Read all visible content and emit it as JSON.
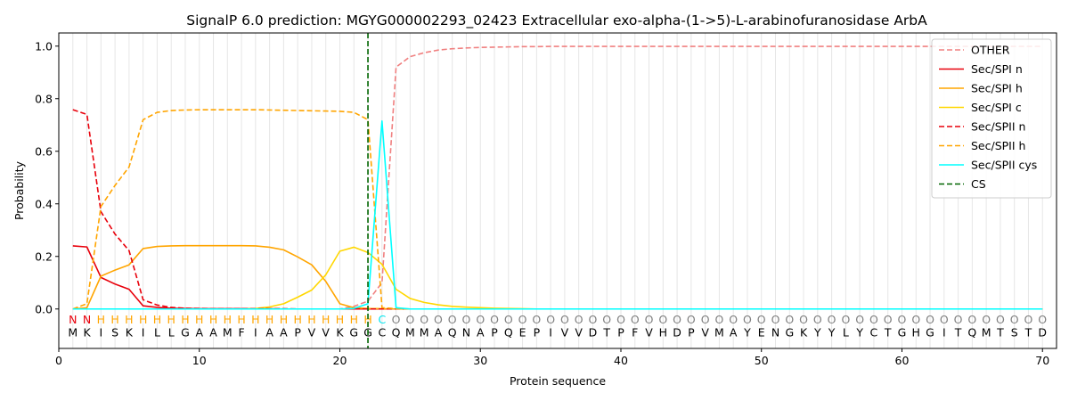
{
  "chart_data": {
    "type": "line",
    "title": "SignalP 6.0 prediction: MGYG000002293_02423 Extracellular exo-alpha-(1->5)-L-arabinofuranosidase ArbA",
    "xlabel": "Protein sequence",
    "ylabel": "Probability",
    "xlim": [
      0,
      71
    ],
    "ylim": [
      -0.15,
      1.05
    ],
    "x_ticks": [
      0,
      10,
      20,
      30,
      40,
      50,
      60,
      70
    ],
    "y_ticks": [
      0.0,
      0.2,
      0.4,
      0.6,
      0.8,
      1.0
    ],
    "grid": "vertical lines at each residue",
    "legend_position": "top-right",
    "sequence": [
      "M",
      "K",
      "I",
      "S",
      "K",
      "I",
      "L",
      "L",
      "G",
      "A",
      "A",
      "M",
      "F",
      "I",
      "A",
      "A",
      "P",
      "V",
      "V",
      "K",
      "G",
      "G",
      "C",
      "Q",
      "M",
      "M",
      "A",
      "Q",
      "N",
      "A",
      "P",
      "Q",
      "E",
      "P",
      "I",
      "V",
      "V",
      "D",
      "T",
      "P",
      "F",
      "V",
      "H",
      "D",
      "P",
      "V",
      "M",
      "A",
      "Y",
      "E",
      "N",
      "G",
      "K",
      "Y",
      "Y",
      "L",
      "Y",
      "C",
      "T",
      "G",
      "H",
      "G",
      "I",
      "T",
      "Q",
      "M",
      "T",
      "S",
      "T",
      "D"
    ],
    "annotation": [
      "N",
      "N",
      "H",
      "H",
      "H",
      "H",
      "H",
      "H",
      "H",
      "H",
      "H",
      "H",
      "H",
      "H",
      "H",
      "H",
      "H",
      "H",
      "H",
      "H",
      "H",
      "H",
      "C",
      "O",
      "O",
      "O",
      "O",
      "O",
      "O",
      "O",
      "O",
      "O",
      "O",
      "O",
      "O",
      "O",
      "O",
      "O",
      "O",
      "O",
      "O",
      "O",
      "O",
      "O",
      "O",
      "O",
      "O",
      "O",
      "O",
      "O",
      "O",
      "O",
      "O",
      "O",
      "O",
      "O",
      "O",
      "O",
      "O",
      "O",
      "O",
      "O",
      "O",
      "O",
      "O",
      "O",
      "O",
      "O",
      "O",
      "O"
    ],
    "annotation_colors": {
      "N": "#e8000b",
      "H": "#ffa500",
      "C": "#00e5ee",
      "O": "#808080"
    },
    "cs_position": 22,
    "series": [
      {
        "name": "OTHER",
        "color": "#f08080",
        "dash": "dashed",
        "values": [
          0.0,
          0.0,
          0.0,
          0.0,
          0.0,
          0.0,
          0.0,
          0.0,
          0.0,
          0.0,
          0.0,
          0.0,
          0.0,
          0.0,
          0.0,
          0.0,
          0.0,
          0.0,
          0.0,
          0.0,
          0.01,
          0.03,
          0.1,
          0.92,
          0.96,
          0.975,
          0.985,
          0.99,
          0.993,
          0.995,
          0.996,
          0.997,
          0.998,
          0.998,
          0.999,
          0.999,
          0.999,
          0.999,
          0.999,
          0.999,
          0.999,
          0.999,
          0.999,
          0.999,
          0.999,
          0.999,
          0.999,
          0.999,
          0.999,
          0.999,
          0.999,
          0.999,
          0.999,
          0.999,
          0.999,
          0.999,
          0.999,
          0.999,
          0.999,
          0.999,
          0.999,
          0.999,
          0.999,
          0.999,
          0.999,
          0.999,
          0.999,
          0.999,
          0.999,
          0.999
        ]
      },
      {
        "name": "Sec/SPI n",
        "color": "#e8000b",
        "dash": "solid",
        "values": [
          0.24,
          0.236,
          0.12,
          0.095,
          0.075,
          0.012,
          0.006,
          0.003,
          0.002,
          0.001,
          0.001,
          0.001,
          0.001,
          0.001,
          0.001,
          0.0,
          0.0,
          0.0,
          0.0,
          0.0,
          0.0,
          0.0,
          0.0,
          0.0,
          0.0,
          0.0,
          0.0,
          0.0,
          0.0,
          0.0,
          0.0,
          0.0,
          0.0,
          0.0,
          0.0,
          0.0,
          0.0,
          0.0,
          0.0,
          0.0,
          0.0,
          0.0,
          0.0,
          0.0,
          0.0,
          0.0,
          0.0,
          0.0,
          0.0,
          0.0,
          0.0,
          0.0,
          0.0,
          0.0,
          0.0,
          0.0,
          0.0,
          0.0,
          0.0,
          0.0,
          0.0,
          0.0,
          0.0,
          0.0,
          0.0,
          0.0,
          0.0,
          0.0,
          0.0,
          0.0
        ]
      },
      {
        "name": "Sec/SPI h",
        "color": "#ffa500",
        "dash": "solid",
        "values": [
          0.0,
          0.005,
          0.125,
          0.148,
          0.168,
          0.23,
          0.238,
          0.24,
          0.241,
          0.241,
          0.241,
          0.241,
          0.241,
          0.24,
          0.235,
          0.225,
          0.198,
          0.168,
          0.105,
          0.02,
          0.005,
          0.002,
          0.001,
          0.0,
          0.0,
          0.0,
          0.0,
          0.0,
          0.0,
          0.0,
          0.0,
          0.0,
          0.0,
          0.0,
          0.0,
          0.0,
          0.0,
          0.0,
          0.0,
          0.0,
          0.0,
          0.0,
          0.0,
          0.0,
          0.0,
          0.0,
          0.0,
          0.0,
          0.0,
          0.0,
          0.0,
          0.0,
          0.0,
          0.0,
          0.0,
          0.0,
          0.0,
          0.0,
          0.0,
          0.0,
          0.0,
          0.0,
          0.0,
          0.0,
          0.0,
          0.0,
          0.0,
          0.0,
          0.0,
          0.0
        ]
      },
      {
        "name": "Sec/SPI c",
        "color": "#ffd700",
        "dash": "solid",
        "values": [
          0.0,
          0.0,
          0.0,
          0.0,
          0.0,
          0.0,
          0.0,
          0.0,
          0.0,
          0.0,
          0.0,
          0.0,
          0.0,
          0.002,
          0.008,
          0.02,
          0.045,
          0.072,
          0.13,
          0.22,
          0.235,
          0.215,
          0.17,
          0.075,
          0.04,
          0.025,
          0.016,
          0.01,
          0.007,
          0.005,
          0.003,
          0.002,
          0.001,
          0.0,
          0.0,
          0.0,
          0.0,
          0.0,
          0.0,
          0.0,
          0.0,
          0.0,
          0.0,
          0.0,
          0.0,
          0.0,
          0.0,
          0.0,
          0.0,
          0.0,
          0.0,
          0.0,
          0.0,
          0.0,
          0.0,
          0.0,
          0.0,
          0.0,
          0.0,
          0.0,
          0.0,
          0.0,
          0.0,
          0.0,
          0.0,
          0.0,
          0.0,
          0.0,
          0.0,
          0.0
        ]
      },
      {
        "name": "Sec/SPII n",
        "color": "#e8000b",
        "dash": "dashed",
        "values": [
          0.758,
          0.74,
          0.37,
          0.285,
          0.222,
          0.035,
          0.015,
          0.006,
          0.003,
          0.002,
          0.001,
          0.001,
          0.001,
          0.001,
          0.001,
          0.001,
          0.0,
          0.0,
          0.0,
          0.0,
          0.0,
          0.0,
          0.0,
          0.0,
          0.0,
          0.0,
          0.0,
          0.0,
          0.0,
          0.0,
          0.0,
          0.0,
          0.0,
          0.0,
          0.0,
          0.0,
          0.0,
          0.0,
          0.0,
          0.0,
          0.0,
          0.0,
          0.0,
          0.0,
          0.0,
          0.0,
          0.0,
          0.0,
          0.0,
          0.0,
          0.0,
          0.0,
          0.0,
          0.0,
          0.0,
          0.0,
          0.0,
          0.0,
          0.0,
          0.0,
          0.0,
          0.0,
          0.0,
          0.0,
          0.0,
          0.0,
          0.0,
          0.0,
          0.0,
          0.0
        ]
      },
      {
        "name": "Sec/SPII h",
        "color": "#ffa500",
        "dash": "dashed",
        "values": [
          0.0,
          0.02,
          0.39,
          0.47,
          0.54,
          0.72,
          0.748,
          0.755,
          0.757,
          0.758,
          0.758,
          0.758,
          0.758,
          0.758,
          0.757,
          0.756,
          0.755,
          0.754,
          0.753,
          0.752,
          0.748,
          0.72,
          0.005,
          0.001,
          0.0,
          0.0,
          0.0,
          0.0,
          0.0,
          0.0,
          0.0,
          0.0,
          0.0,
          0.0,
          0.0,
          0.0,
          0.0,
          0.0,
          0.0,
          0.0,
          0.0,
          0.0,
          0.0,
          0.0,
          0.0,
          0.0,
          0.0,
          0.0,
          0.0,
          0.0,
          0.0,
          0.0,
          0.0,
          0.0,
          0.0,
          0.0,
          0.0,
          0.0,
          0.0,
          0.0,
          0.0,
          0.0,
          0.0,
          0.0,
          0.0,
          0.0,
          0.0,
          0.0,
          0.0,
          0.0
        ]
      },
      {
        "name": "Sec/SPII cys",
        "color": "#00ffff",
        "dash": "solid",
        "values": [
          0.0,
          0.0,
          0.0,
          0.0,
          0.0,
          0.0,
          0.0,
          0.0,
          0.0,
          0.0,
          0.0,
          0.0,
          0.0,
          0.0,
          0.0,
          0.0,
          0.0,
          0.0,
          0.0,
          0.0,
          0.002,
          0.02,
          0.715,
          0.005,
          0.0,
          0.0,
          0.0,
          0.0,
          0.0,
          0.0,
          0.0,
          0.0,
          0.0,
          0.0,
          0.0,
          0.0,
          0.0,
          0.0,
          0.0,
          0.0,
          0.0,
          0.0,
          0.0,
          0.0,
          0.0,
          0.0,
          0.0,
          0.0,
          0.0,
          0.0,
          0.0,
          0.0,
          0.0,
          0.0,
          0.0,
          0.0,
          0.0,
          0.0,
          0.0,
          0.0,
          0.0,
          0.0,
          0.0,
          0.0,
          0.0,
          0.0,
          0.0,
          0.0,
          0.0,
          0.0
        ]
      }
    ],
    "legend": [
      {
        "label": "OTHER",
        "color": "#f08080",
        "dash": "dashed"
      },
      {
        "label": "Sec/SPI n",
        "color": "#e8000b",
        "dash": "solid"
      },
      {
        "label": "Sec/SPI h",
        "color": "#ffa500",
        "dash": "solid"
      },
      {
        "label": "Sec/SPI c",
        "color": "#ffd700",
        "dash": "solid"
      },
      {
        "label": "Sec/SPII n",
        "color": "#e8000b",
        "dash": "dashed"
      },
      {
        "label": "Sec/SPII h",
        "color": "#ffa500",
        "dash": "dashed"
      },
      {
        "label": "Sec/SPII cys",
        "color": "#00ffff",
        "dash": "solid"
      },
      {
        "label": "CS",
        "color": "#006400",
        "dash": "dashed"
      }
    ]
  }
}
